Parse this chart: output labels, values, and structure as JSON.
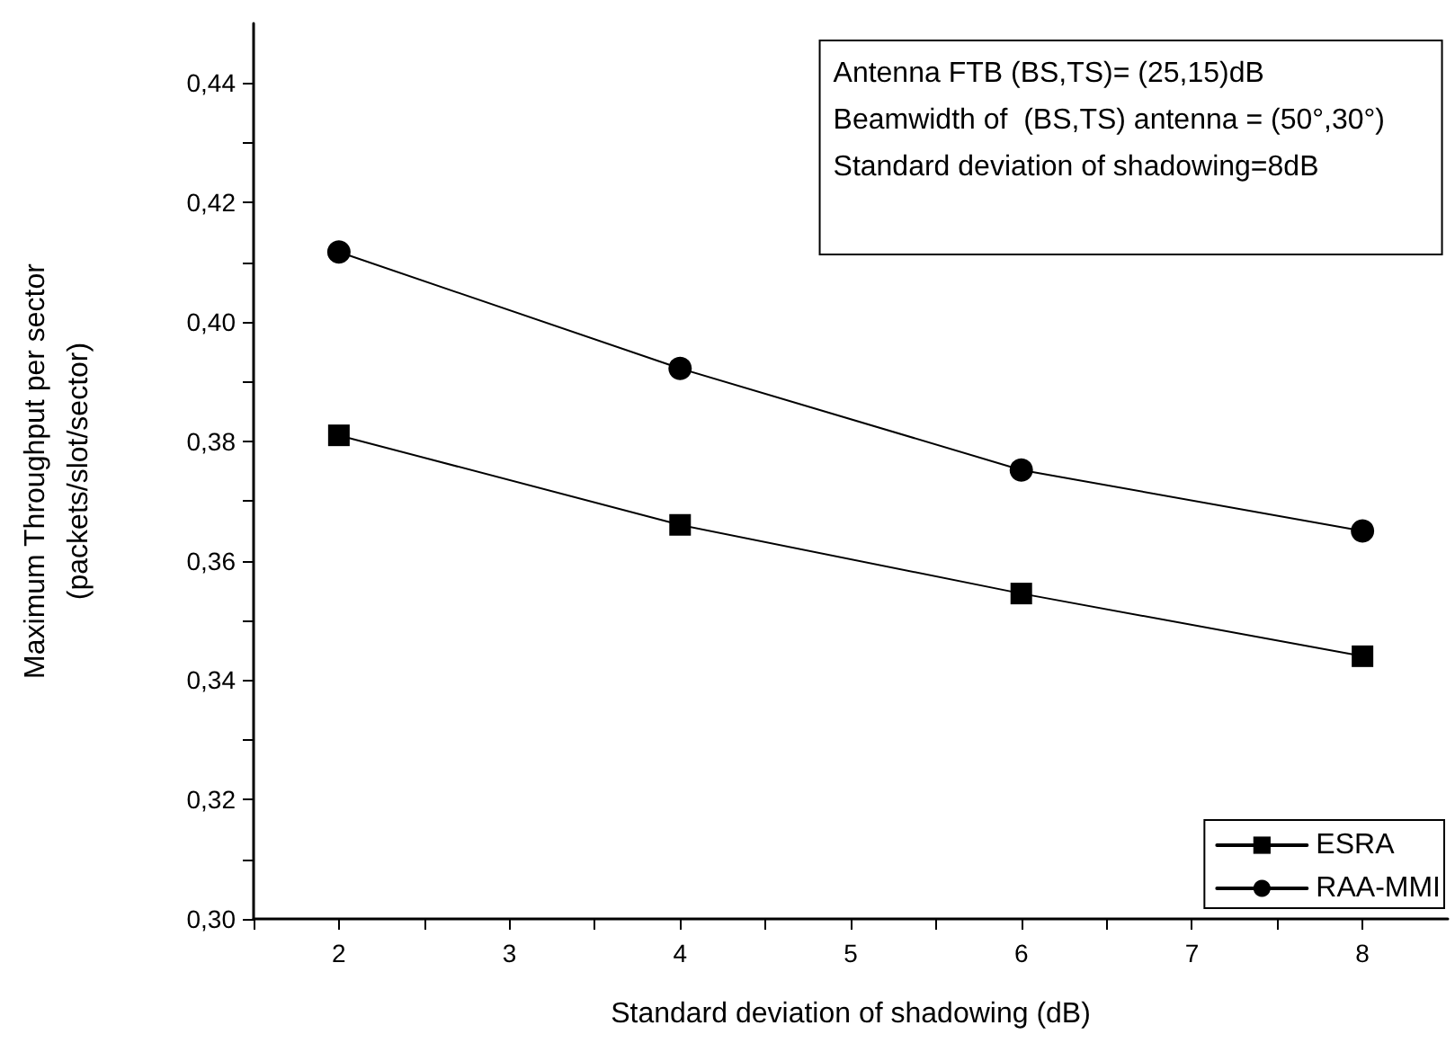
{
  "chart_data": {
    "type": "line",
    "xlabel": "Standard deviation of shadowing (dB)",
    "ylabel": "Maximum Throughput per sector\n(packets/slot/sector)",
    "annotations": [
      "Antenna FTB (BS,TS)= (25,15)dB",
      "Beamwidth of  (BS,TS) antenna = (50°,30°)",
      "Standard deviation of shadowing=8dB"
    ],
    "x": [
      2,
      4,
      6,
      8
    ],
    "series": [
      {
        "name": "ESRA",
        "color": "#000000",
        "marker": "square",
        "values": [
          0.381,
          0.366,
          0.3545,
          0.344
        ]
      },
      {
        "name": "RAA-MMI",
        "color": "#000000",
        "marker": "circle",
        "values": [
          0.4117,
          0.3922,
          0.3752,
          0.365
        ]
      }
    ],
    "xlim": [
      1.5,
      8.5
    ],
    "ylim": [
      0.3,
      0.45
    ],
    "xticks": [
      {
        "value": 1.5,
        "label": null
      },
      2,
      {
        "value": 2.5,
        "label": null
      },
      3,
      {
        "value": 3.5,
        "label": null
      },
      4,
      {
        "value": 4.5,
        "label": null
      },
      5,
      {
        "value": 5.5,
        "label": null
      },
      6,
      {
        "value": 6.5,
        "label": null
      },
      7,
      {
        "value": 7.5,
        "label": null
      },
      8
    ],
    "yticks": [
      {
        "value": 0.3,
        "label": "0,30"
      },
      {
        "value": 0.31,
        "label": null
      },
      {
        "value": 0.32,
        "label": "0,32"
      },
      {
        "value": 0.33,
        "label": null
      },
      {
        "value": 0.34,
        "label": "0,34"
      },
      {
        "value": 0.35,
        "label": null
      },
      {
        "value": 0.36,
        "label": "0,36"
      },
      {
        "value": 0.37,
        "label": null
      },
      {
        "value": 0.38,
        "label": "0,38"
      },
      {
        "value": 0.39,
        "label": null
      },
      {
        "value": 0.4,
        "label": "0,40"
      },
      {
        "value": 0.41,
        "label": null
      },
      {
        "value": 0.42,
        "label": "0,42"
      },
      {
        "value": 0.43,
        "label": null
      },
      {
        "value": 0.44,
        "label": "0,44"
      }
    ],
    "grid": false,
    "legend": "bottom right",
    "line_style": "solid"
  }
}
